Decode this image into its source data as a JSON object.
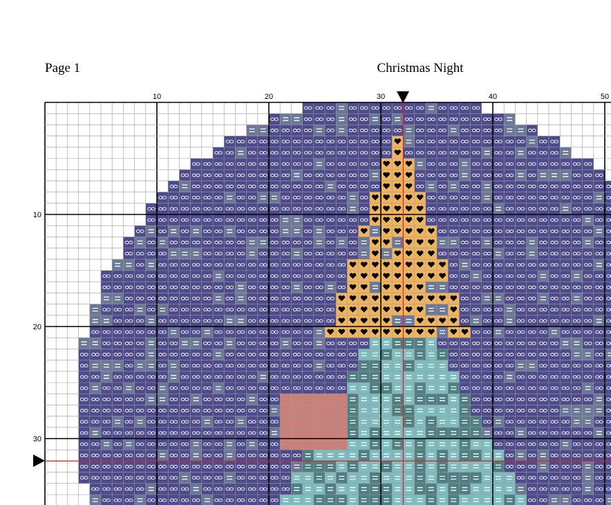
{
  "header": {
    "page": "Page 1",
    "title": "Christmas Night"
  },
  "column_numbers": [
    10,
    20,
    30,
    40,
    50
  ],
  "row_numbers": [
    10,
    20,
    30
  ]
}
